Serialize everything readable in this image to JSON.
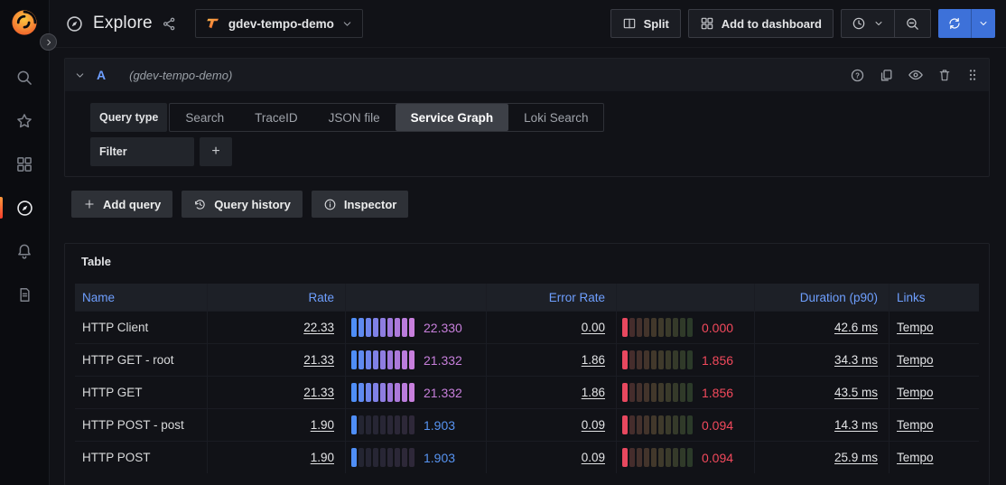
{
  "colors": {
    "accent_blue": "#3d71d9",
    "link_blue": "#6e9fff",
    "value_purple": "#c77fdb",
    "value_blue": "#5794f2",
    "value_red": "#f2495c",
    "active_orange": "#f53e2d"
  },
  "sidebar": {
    "icons": [
      "grafana-logo",
      "search",
      "star",
      "apps",
      "explore",
      "bell",
      "document"
    ],
    "active": "explore"
  },
  "topbar": {
    "title": "Explore",
    "datasource": "gdev-tempo-demo",
    "split": "Split",
    "add_to_dashboard": "Add to dashboard"
  },
  "query_editor": {
    "ref_id": "A",
    "datasource_hint": "(gdev-tempo-demo)",
    "query_type_label": "Query type",
    "types": [
      "Search",
      "TraceID",
      "JSON file",
      "Service Graph",
      "Loki Search"
    ],
    "selected_type": "Service Graph",
    "filter_label": "Filter",
    "add_filter": "+"
  },
  "actions": {
    "add_query": "Add query",
    "query_history": "Query history",
    "inspector": "Inspector"
  },
  "table": {
    "title": "Table",
    "columns": {
      "name": "Name",
      "rate": "Rate",
      "error": "Error Rate",
      "duration": "Duration (p90)",
      "links": "Links"
    },
    "rows": [
      {
        "name": "HTTP Client",
        "rate": "22.33",
        "rate_value": "22.330",
        "rate_value_color": "#c77fdb",
        "rate_gauge": {
          "lit": 9,
          "total": 9,
          "scheme": "rate"
        },
        "error": "0.00",
        "error_value": "0.000",
        "error_gauge": {
          "lit": 1,
          "total": 10,
          "scheme": "error"
        },
        "duration": "42.6 ms",
        "link": "Tempo"
      },
      {
        "name": "HTTP GET - root",
        "rate": "21.33",
        "rate_value": "21.332",
        "rate_value_color": "#c77fdb",
        "rate_gauge": {
          "lit": 9,
          "total": 9,
          "scheme": "rate"
        },
        "error": "1.86",
        "error_value": "1.856",
        "error_gauge": {
          "lit": 1,
          "total": 10,
          "scheme": "error"
        },
        "duration": "34.3 ms",
        "link": "Tempo"
      },
      {
        "name": "HTTP GET",
        "rate": "21.33",
        "rate_value": "21.332",
        "rate_value_color": "#c77fdb",
        "rate_gauge": {
          "lit": 9,
          "total": 9,
          "scheme": "rate"
        },
        "error": "1.86",
        "error_value": "1.856",
        "error_gauge": {
          "lit": 1,
          "total": 10,
          "scheme": "error"
        },
        "duration": "43.5 ms",
        "link": "Tempo"
      },
      {
        "name": "HTTP POST - post",
        "rate": "1.90",
        "rate_value": "1.903",
        "rate_value_color": "#5794f2",
        "rate_gauge": {
          "lit": 1,
          "total": 9,
          "scheme": "rate"
        },
        "error": "0.09",
        "error_value": "0.094",
        "error_gauge": {
          "lit": 1,
          "total": 10,
          "scheme": "error"
        },
        "duration": "14.3 ms",
        "link": "Tempo"
      },
      {
        "name": "HTTP POST",
        "rate": "1.90",
        "rate_value": "1.903",
        "rate_value_color": "#5794f2",
        "rate_gauge": {
          "lit": 1,
          "total": 9,
          "scheme": "rate"
        },
        "error": "0.09",
        "error_value": "0.094",
        "error_gauge": {
          "lit": 1,
          "total": 10,
          "scheme": "error"
        },
        "duration": "25.9 ms",
        "link": "Tempo"
      }
    ]
  }
}
